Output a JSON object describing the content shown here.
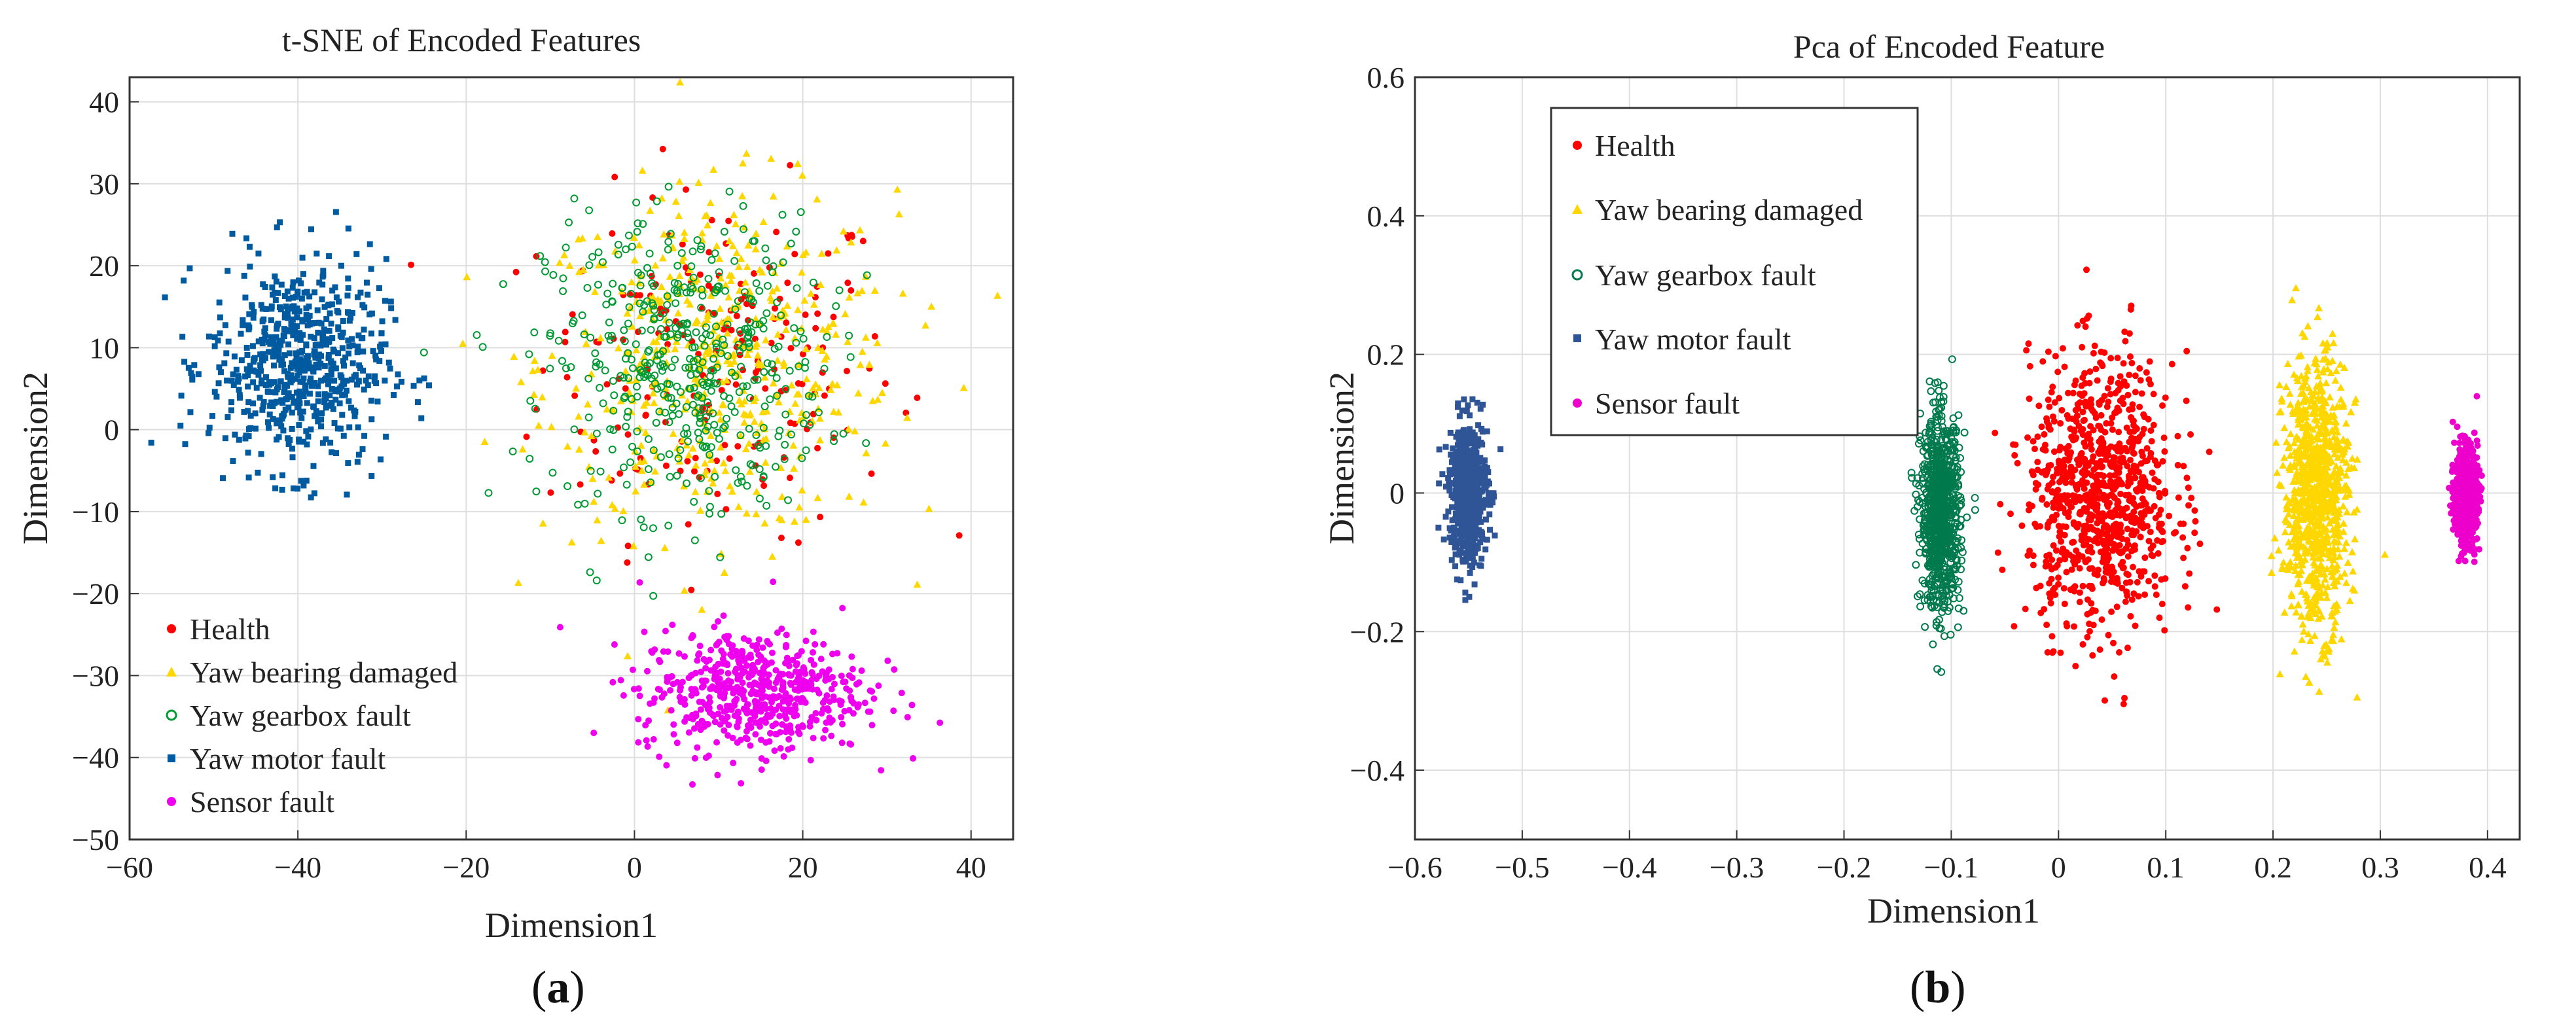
{
  "chart_data": [
    {
      "type": "scatter",
      "panel": "a",
      "caption_letter": "a",
      "title": "t-SNE of Encoded Features",
      "xlabel": "Dimension1",
      "ylabel": "Dimension2",
      "xlim": [
        -60,
        45
      ],
      "ylim": [
        -50,
        43
      ],
      "xticks": [
        -60,
        -40,
        -20,
        0,
        20,
        40
      ],
      "yticks": [
        -50,
        -40,
        -30,
        -20,
        -10,
        0,
        10,
        20,
        30,
        40
      ],
      "grid": true,
      "legend_position": "bottom-left",
      "series": [
        {
          "name": "Health",
          "color": "#ff0000",
          "marker": "dot",
          "clusters": [
            {
              "cx": 10,
              "cy": 8,
              "sx": 14,
              "sy": 14,
              "n": 200
            }
          ]
        },
        {
          "name": "Yaw bearing damaged",
          "color": "#ffd700",
          "marker": "triangle",
          "clusters": [
            {
              "cx": 10,
              "cy": 8,
              "sx": 14,
              "sy": 14,
              "n": 480
            }
          ]
        },
        {
          "name": "Yaw gearbox fault",
          "color": "#009933",
          "marker": "circle",
          "clusters": [
            {
              "cx": 6,
              "cy": 8,
              "sx": 11,
              "sy": 12,
              "n": 460
            }
          ]
        },
        {
          "name": "Yaw motor fault",
          "color": "#005aa0",
          "marker": "square",
          "clusters": [
            {
              "cx": -40,
              "cy": 8,
              "sx": 7,
              "sy": 8.5,
              "n": 620
            }
          ]
        },
        {
          "name": "Sensor fault",
          "color": "#ee00ee",
          "marker": "dot",
          "clusters": [
            {
              "cx": 14,
              "cy": -32,
              "sx": 9,
              "sy": 5,
              "n": 560
            }
          ]
        }
      ]
    },
    {
      "type": "scatter",
      "panel": "b",
      "caption_letter": "b",
      "title": "Pca of Encoded Feature",
      "xlabel": "Dimension1",
      "ylabel": "Dimension2",
      "xlim": [
        -0.6,
        0.43
      ],
      "ylim": [
        -0.5,
        0.6
      ],
      "xticks": [
        -0.6,
        -0.5,
        -0.4,
        -0.3,
        -0.2,
        -0.1,
        0,
        0.1,
        0.2,
        0.3,
        0.4
      ],
      "yticks": [
        -0.4,
        -0.2,
        0,
        0.2,
        0.4,
        0.6
      ],
      "grid": true,
      "legend_position": "top-left",
      "series": [
        {
          "name": "Health",
          "color": "#ff0000",
          "marker": "dot",
          "clusters": [
            {
              "cx": 0.04,
              "cy": 0.0,
              "sx": 0.045,
              "sy": 0.13,
              "n": 900
            }
          ]
        },
        {
          "name": "Yaw bearing damaged",
          "color": "#ffd700",
          "marker": "triangle",
          "clusters": [
            {
              "cx": 0.24,
              "cy": 0.0,
              "sx": 0.02,
              "sy": 0.13,
              "n": 900
            }
          ]
        },
        {
          "name": "Yaw gearbox fault",
          "color": "#007a4d",
          "marker": "circle",
          "clusters": [
            {
              "cx": -0.11,
              "cy": -0.03,
              "sx": 0.012,
              "sy": 0.09,
              "n": 900
            }
          ]
        },
        {
          "name": "Yaw motor fault",
          "color": "#2f5597",
          "marker": "square",
          "clusters": [
            {
              "cx": -0.55,
              "cy": 0.0,
              "sx": 0.012,
              "sy": 0.07,
              "n": 600
            }
          ]
        },
        {
          "name": "Sensor fault",
          "color": "#ee00cc",
          "marker": "dot",
          "clusters": [
            {
              "cx": 0.38,
              "cy": -0.005,
              "sx": 0.007,
              "sy": 0.045,
              "n": 700
            }
          ]
        }
      ]
    }
  ]
}
